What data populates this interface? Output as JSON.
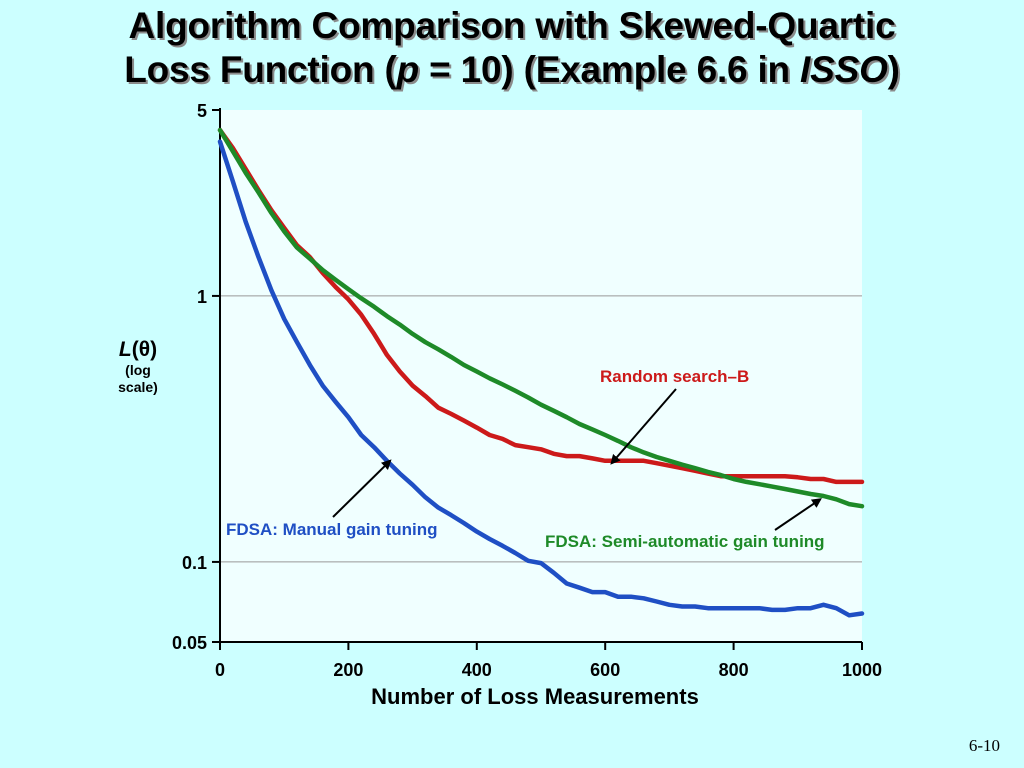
{
  "slide": {
    "title_line1": "Algorithm Comparison with Skewed-Quartic",
    "title_line2_a": "Loss Function (",
    "title_line2_p": "p",
    "title_line2_b": " = 10) (Example 6.6 in ",
    "title_line2_isso": "ISSO",
    "title_line2_c": ")",
    "slide_number": "6-10",
    "background": "#ccffff"
  },
  "chart_data": {
    "type": "line",
    "title": "Algorithm Comparison with Skewed-Quartic Loss Function (p = 10) (Example 6.6 in ISSO)",
    "xlabel": "Number of Loss Measurements",
    "ylabel_main_a": "L",
    "ylabel_main_b": "(θ)",
    "ylabel_sub1": "(log",
    "ylabel_sub2": "scale)",
    "xlim": [
      0,
      1000
    ],
    "ylim": [
      0.05,
      5
    ],
    "y_scale": "log",
    "x_ticks": [
      0,
      200,
      400,
      600,
      800,
      1000
    ],
    "x_tick_labels": [
      "0",
      "200",
      "400",
      "600",
      "800",
      "1000"
    ],
    "y_ticks": [
      0.05,
      0.1,
      1,
      5
    ],
    "y_tick_labels": [
      "0.05",
      "0.1",
      "1",
      "5"
    ],
    "grid_y": [
      0.1,
      1
    ],
    "plot_background": "#f0ffff",
    "gridline_color": "#999999",
    "series": [
      {
        "name": "FDSA: Manual gain tuning",
        "color": "#1f4fc4",
        "x": [
          0,
          20,
          40,
          60,
          80,
          100,
          120,
          140,
          160,
          180,
          200,
          220,
          240,
          260,
          280,
          300,
          320,
          340,
          360,
          380,
          400,
          420,
          440,
          460,
          480,
          500,
          520,
          540,
          560,
          580,
          600,
          620,
          640,
          660,
          680,
          700,
          720,
          740,
          760,
          780,
          800,
          820,
          840,
          860,
          880,
          900,
          920,
          940,
          960,
          980,
          1000
        ],
        "values": [
          3.8,
          2.7,
          1.9,
          1.4,
          1.05,
          0.82,
          0.67,
          0.55,
          0.46,
          0.4,
          0.35,
          0.3,
          0.27,
          0.24,
          0.215,
          0.195,
          0.175,
          0.16,
          0.15,
          0.14,
          0.13,
          0.122,
          0.115,
          0.108,
          0.101,
          0.099,
          0.091,
          0.083,
          0.08,
          0.077,
          0.077,
          0.074,
          0.074,
          0.073,
          0.071,
          0.069,
          0.068,
          0.068,
          0.067,
          0.067,
          0.067,
          0.067,
          0.067,
          0.066,
          0.066,
          0.067,
          0.067,
          0.069,
          0.067,
          0.063,
          0.064
        ]
      },
      {
        "name": "Random search–B",
        "color": "#cc1a1a",
        "x": [
          0,
          20,
          40,
          60,
          80,
          100,
          120,
          140,
          160,
          180,
          200,
          220,
          240,
          260,
          280,
          300,
          320,
          340,
          360,
          380,
          400,
          420,
          440,
          460,
          480,
          500,
          520,
          540,
          560,
          580,
          600,
          620,
          640,
          660,
          680,
          700,
          720,
          740,
          760,
          780,
          800,
          820,
          840,
          860,
          880,
          900,
          920,
          940,
          960,
          980,
          1000
        ],
        "values": [
          4.2,
          3.6,
          3.0,
          2.5,
          2.1,
          1.8,
          1.55,
          1.4,
          1.22,
          1.08,
          0.97,
          0.85,
          0.72,
          0.6,
          0.52,
          0.46,
          0.42,
          0.38,
          0.36,
          0.34,
          0.32,
          0.3,
          0.29,
          0.275,
          0.27,
          0.265,
          0.255,
          0.25,
          0.25,
          0.245,
          0.24,
          0.24,
          0.24,
          0.24,
          0.235,
          0.23,
          0.225,
          0.22,
          0.215,
          0.21,
          0.21,
          0.21,
          0.21,
          0.21,
          0.21,
          0.208,
          0.205,
          0.205,
          0.2,
          0.2,
          0.2
        ]
      },
      {
        "name": "FDSA: Semi-automatic gain tuning",
        "color": "#1e8a28",
        "x": [
          0,
          20,
          40,
          60,
          80,
          100,
          120,
          140,
          160,
          180,
          200,
          220,
          240,
          260,
          280,
          300,
          320,
          340,
          360,
          380,
          400,
          420,
          440,
          460,
          480,
          500,
          520,
          540,
          560,
          580,
          600,
          620,
          640,
          660,
          680,
          700,
          720,
          740,
          760,
          780,
          800,
          820,
          840,
          860,
          880,
          900,
          920,
          940,
          960,
          980,
          1000
        ],
        "values": [
          4.2,
          3.5,
          2.9,
          2.45,
          2.05,
          1.75,
          1.52,
          1.38,
          1.25,
          1.15,
          1.06,
          0.98,
          0.91,
          0.84,
          0.78,
          0.72,
          0.67,
          0.63,
          0.59,
          0.55,
          0.52,
          0.49,
          0.465,
          0.44,
          0.415,
          0.39,
          0.37,
          0.35,
          0.33,
          0.315,
          0.3,
          0.285,
          0.27,
          0.258,
          0.248,
          0.24,
          0.232,
          0.225,
          0.218,
          0.212,
          0.205,
          0.2,
          0.196,
          0.192,
          0.188,
          0.184,
          0.18,
          0.177,
          0.172,
          0.165,
          0.162
        ]
      }
    ],
    "annotations": [
      {
        "text": "Random search–B",
        "color": "#cc1a1a",
        "series": 1,
        "point_x": 610,
        "point_y": 0.235
      },
      {
        "text": "FDSA: Manual gain tuning",
        "color": "#1f4fc4",
        "series": 0,
        "point_x": 265,
        "point_y": 0.24
      },
      {
        "text": "FDSA: Semi-automatic gain tuning",
        "color": "#1e8a28",
        "series": 2,
        "point_x": 935,
        "point_y": 0.172
      }
    ]
  }
}
